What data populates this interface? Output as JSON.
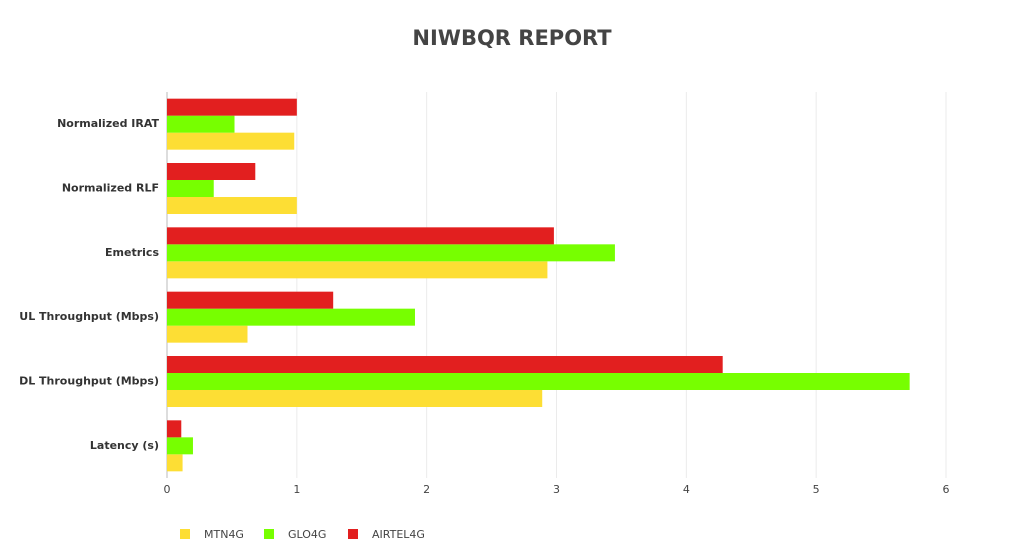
{
  "chart_data": {
    "type": "hbar",
    "title": "NIWBQR REPORT",
    "categories": [
      "Normalized IRAT",
      "Normalized RLF",
      "Emetrics",
      "UL Throughput (Mbps)",
      "DL Throughput (Mbps)",
      "Latency (s)"
    ],
    "series": [
      {
        "name": "MTN4G",
        "color": "#fdde34",
        "values": [
          0.98,
          1.0,
          2.93,
          0.62,
          2.89,
          0.12
        ]
      },
      {
        "name": "GLO4G",
        "color": "#77ff00",
        "values": [
          0.52,
          0.36,
          3.45,
          1.91,
          5.72,
          0.2
        ]
      },
      {
        "name": "AIRTEL4G",
        "color": "#e21f1f",
        "values": [
          1.0,
          0.68,
          2.98,
          1.28,
          4.28,
          0.11
        ]
      }
    ],
    "xlim": [
      0,
      6
    ],
    "xticks": [
      0,
      1,
      2,
      3,
      4,
      5,
      6
    ],
    "grid": true
  }
}
